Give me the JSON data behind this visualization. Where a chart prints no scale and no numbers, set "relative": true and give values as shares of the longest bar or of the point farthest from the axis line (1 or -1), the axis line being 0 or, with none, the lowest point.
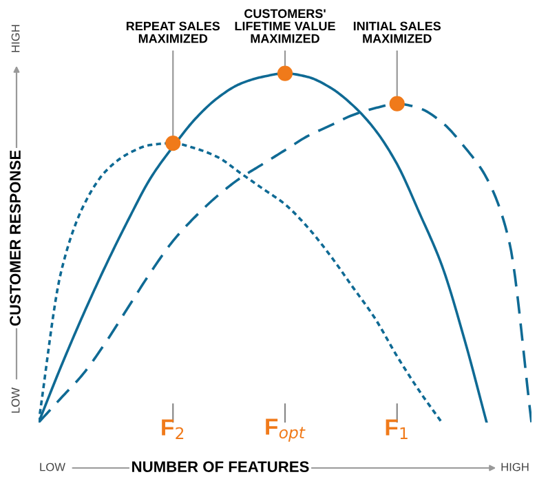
{
  "chart_data": {
    "type": "line",
    "relative": true,
    "xlabel": "NUMBER OF FEATURES",
    "ylabel": "CUSTOMER RESPONSE",
    "categories": [
      null,
      null,
      null,
      null,
      null,
      null,
      "F$_{2}$",
      null,
      null,
      null,
      null,
      "F$_{opt}$",
      null,
      null,
      null,
      null,
      "F$_{1}$",
      null,
      null,
      null,
      null,
      null,
      null
    ],
    "series": [
      {
        "color": "#0f6a94",
        "line_style": "dotted",
        "values": [
          0,
          0.43,
          0.62,
          0.72,
          0.77,
          0.795,
          0.8,
          0.785,
          0.76,
          0.715,
          0.67,
          0.625,
          0.56,
          0.48,
          0.39,
          0.3,
          0.19,
          0.09,
          0,
          null,
          null,
          null,
          null
        ]
      },
      {
        "color": "#0f6a94",
        "line_style": "solid",
        "values": [
          0,
          0.16,
          0.31,
          0.45,
          0.58,
          0.7,
          0.79,
          0.87,
          0.93,
          0.97,
          0.99,
          1,
          0.99,
          0.96,
          0.91,
          0.84,
          0.74,
          0.6,
          0.45,
          0.24,
          0,
          null,
          null
        ]
      },
      {
        "color": "#0f6a94",
        "line_style": "dashed",
        "values": [
          0,
          0.07,
          0.14,
          0.23,
          0.33,
          0.43,
          0.52,
          0.59,
          0.65,
          0.7,
          0.74,
          0.78,
          0.82,
          0.85,
          0.88,
          0.9,
          0.913,
          0.9,
          0.86,
          0.79,
          0.7,
          0.52,
          0
        ]
      }
    ],
    "annotations": [
      "REPEAT SALES\nMAXIMIZED",
      "CUSTOMERS'\nLIFETIME VALUE\nMAXIMIZED",
      "INITIAL SALES\nMAXIMIZED",
      "LOW",
      "HIGH",
      "LOW",
      "HIGH"
    ],
    "legend": false,
    "grid": false,
    "marker": "none"
  }
}
